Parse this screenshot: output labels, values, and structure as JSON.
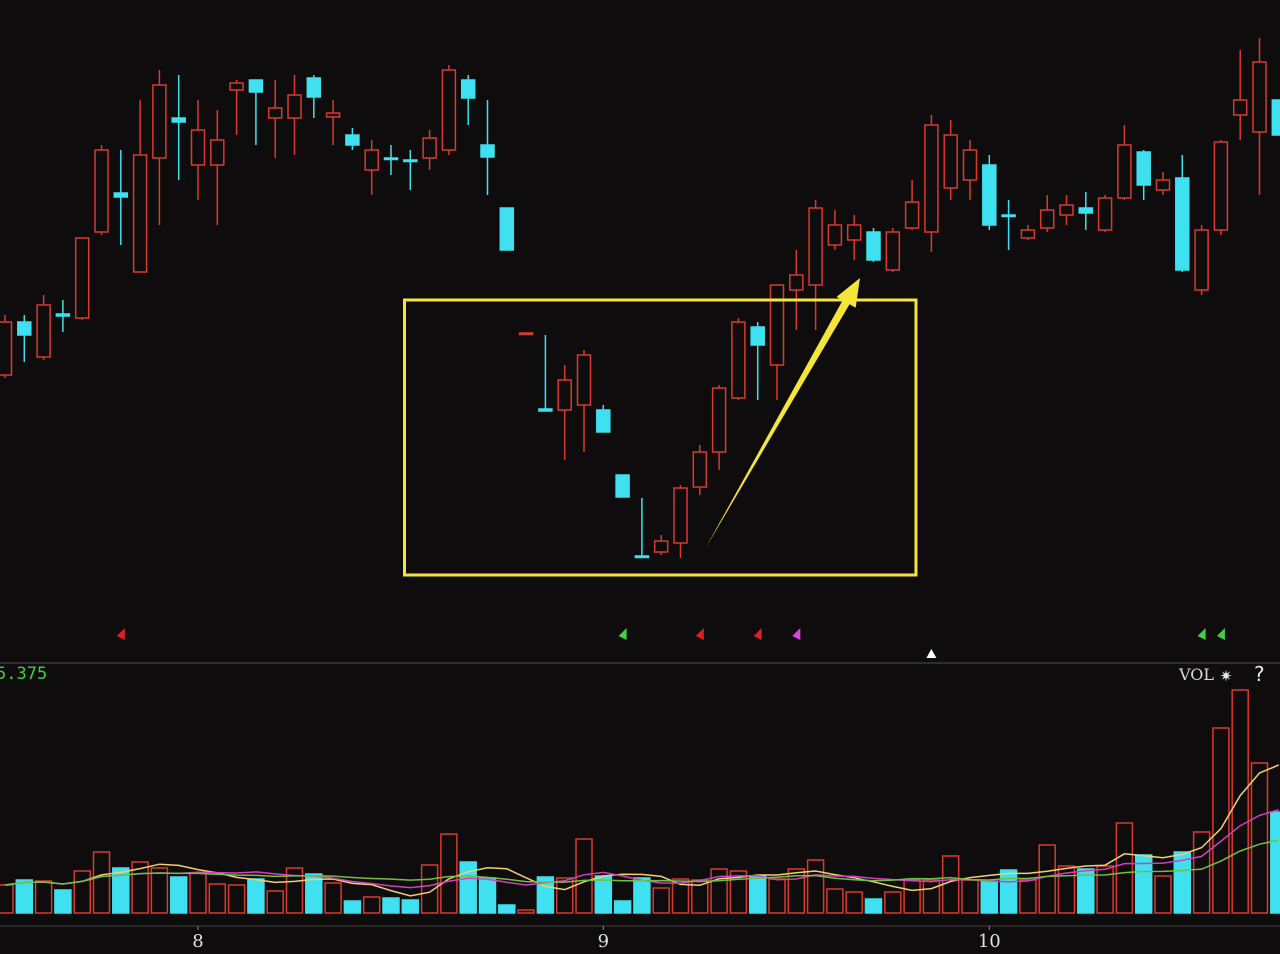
{
  "chart_data": [
    {
      "type": "candlestick",
      "panel": "price",
      "title": "",
      "ylim": [
        0,
        35
      ],
      "grid": false,
      "up_color": "#d83a2c",
      "down_color": "#3fe0f0",
      "candles_ohlc": [
        [
          16.25,
          18.9,
          19.25,
          16.1
        ],
        [
          18.9,
          18.25,
          19.25,
          16.9
        ],
        [
          17.15,
          19.75,
          20.25,
          17
        ],
        [
          19.3,
          19.2,
          20,
          18.4
        ],
        [
          19.1,
          23.1,
          23.1,
          19
        ],
        [
          23.4,
          27.5,
          27.75,
          23.25
        ],
        [
          25.35,
          25.15,
          27.5,
          22.75
        ],
        [
          21.4,
          27.25,
          30,
          21.4
        ],
        [
          27.1,
          30.75,
          31.5,
          23.75
        ],
        [
          29.1,
          28.9,
          31.25,
          26
        ],
        [
          26.75,
          28.5,
          30,
          25
        ],
        [
          26.75,
          28,
          29.5,
          23.75
        ],
        [
          30.5,
          30.85,
          31,
          28.25
        ],
        [
          31,
          30.4,
          31,
          27.75
        ],
        [
          29.1,
          29.6,
          31,
          27.1
        ],
        [
          29.1,
          30.25,
          31.25,
          27.25
        ],
        [
          31.1,
          30.15,
          31.25,
          29.1
        ],
        [
          29.15,
          29.35,
          30,
          27.75
        ],
        [
          28.25,
          27.75,
          28.6,
          27.5
        ],
        [
          26.5,
          27.5,
          28,
          25.25
        ],
        [
          27.1,
          27.05,
          27.75,
          26.25
        ],
        [
          27,
          26.95,
          27.5,
          25.5
        ],
        [
          27.1,
          28.1,
          28.5,
          26.5
        ],
        [
          27.5,
          31.5,
          31.75,
          27.25
        ],
        [
          31,
          30.1,
          31.25,
          28.75
        ],
        [
          27.75,
          27.15,
          30,
          25.25
        ],
        [
          24.6,
          22.5,
          24.6,
          22.5
        ],
        [
          18.35,
          18.35,
          18.35,
          18.35
        ],
        [
          14.55,
          14.45,
          18.25,
          14.45
        ],
        [
          14.5,
          16,
          16.75,
          12
        ],
        [
          14.75,
          17.25,
          17.5,
          12.4
        ],
        [
          14.5,
          13.4,
          14.75,
          13.4
        ],
        [
          11.25,
          10.15,
          11.25,
          10.15
        ],
        [
          7.2,
          7.15,
          10.1,
          7.1
        ],
        [
          7.4,
          7.95,
          8.25,
          7.25
        ],
        [
          7.85,
          10.6,
          10.75,
          7.1
        ],
        [
          10.65,
          12.4,
          12.75,
          10.25
        ],
        [
          12.4,
          15.6,
          15.75,
          11.5
        ],
        [
          15.1,
          18.9,
          19.1,
          15
        ],
        [
          18.65,
          17.75,
          18.9,
          15
        ],
        [
          16.75,
          20.75,
          20.75,
          15
        ],
        [
          20.5,
          21.25,
          22.5,
          18.5
        ],
        [
          20.75,
          24.6,
          25,
          18.5
        ],
        [
          22.75,
          23.75,
          24.5,
          22.5
        ],
        [
          23,
          23.75,
          24.25,
          22
        ],
        [
          23.4,
          22,
          23.6,
          21.9
        ],
        [
          21.5,
          23.4,
          23.6,
          21.4
        ],
        [
          23.6,
          24.9,
          26,
          23.5
        ],
        [
          23.4,
          28.75,
          29.25,
          22.4
        ],
        [
          25.6,
          28.25,
          29,
          25
        ],
        [
          26,
          27.5,
          28,
          25
        ],
        [
          26.75,
          23.75,
          27.25,
          23.5
        ],
        [
          24.25,
          24.2,
          25,
          22.5
        ],
        [
          23.1,
          23.5,
          23.75,
          23
        ],
        [
          23.6,
          24.5,
          25.25,
          23.4
        ],
        [
          24.25,
          24.75,
          25.25,
          23.75
        ],
        [
          24.6,
          24.35,
          25.4,
          23.5
        ],
        [
          23.5,
          25.1,
          25.25,
          23.4
        ],
        [
          25.1,
          27.75,
          28.75,
          25
        ],
        [
          27.4,
          25.75,
          27.5,
          25
        ],
        [
          25.5,
          26,
          26.4,
          25.25
        ],
        [
          26.1,
          21.5,
          27.25,
          21.4
        ],
        [
          20.5,
          23.5,
          23.75,
          20.25
        ],
        [
          23.5,
          27.9,
          28,
          23.25
        ],
        [
          29.25,
          30,
          32.5,
          28
        ],
        [
          28.4,
          31.9,
          33.1,
          25.25
        ],
        [
          30,
          28.25,
          30,
          28.25
        ]
      ],
      "signal_markers": [
        {
          "index": 6,
          "color": "#e02020"
        },
        {
          "index": 32,
          "color": "#3fd23f"
        },
        {
          "index": 36,
          "color": "#e02020"
        },
        {
          "index": 39,
          "color": "#e02020"
        },
        {
          "index": 41,
          "color": "#e040e0"
        },
        {
          "index": 62,
          "color": "#3fd23f"
        },
        {
          "index": 63,
          "color": "#3fd23f"
        }
      ],
      "cursor_marker": {
        "index": 48,
        "color": "#ffffff"
      },
      "annotations": {
        "highlight_box": {
          "from_index": 20.7,
          "to_index": 47.2,
          "price_low": 6.25,
          "price_high": 20,
          "color": "#f5e43a"
        },
        "arrow": {
          "from_index": 36.3,
          "from_price": 7.6,
          "to_index": 44.3,
          "to_price": 21.1,
          "color": "#f5e43a"
        }
      }
    },
    {
      "type": "bar",
      "panel": "volume",
      "title": "VOL",
      "readout": "5.375",
      "ylim": [
        0,
        225
      ],
      "values": [
        28,
        33,
        32,
        23,
        42,
        61,
        45,
        51,
        45,
        36,
        40,
        29,
        28,
        34,
        22,
        45,
        39,
        30,
        12,
        16,
        15,
        13,
        48,
        79,
        51,
        35,
        8,
        3,
        36,
        35,
        74,
        37,
        12,
        35,
        25,
        34,
        33,
        44,
        42,
        37,
        34,
        44,
        53,
        24,
        21,
        14,
        21,
        33,
        33,
        57,
        33,
        32,
        43,
        33,
        68,
        47,
        44,
        47,
        90,
        58,
        37,
        61,
        81,
        185,
        223,
        150,
        101
      ],
      "moving_averages": [
        {
          "period": 5,
          "color": "#f0d070"
        },
        {
          "period": 10,
          "color": "#d040c0"
        },
        {
          "period": 20,
          "color": "#70c040"
        }
      ],
      "x_ticks": [
        {
          "label": "8",
          "index": 10
        },
        {
          "label": "9",
          "index": 31
        },
        {
          "label": "10",
          "index": 51
        }
      ]
    }
  ],
  "toolbar": {
    "vol_label": "VOL",
    "settings_icon": "gear-icon",
    "help_label": "?"
  }
}
